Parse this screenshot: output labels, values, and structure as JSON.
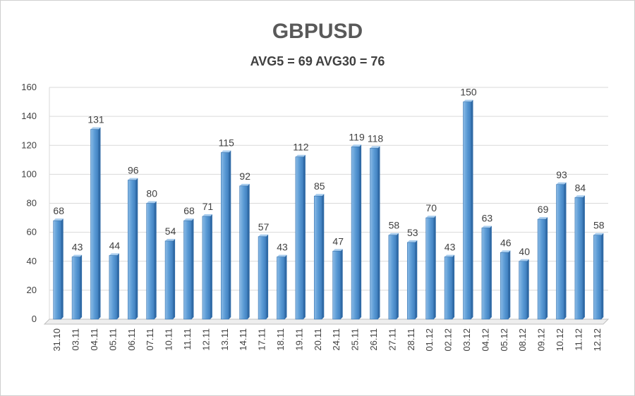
{
  "chart_data": {
    "type": "bar",
    "title": "GBPUSD",
    "subtitle": "AVG5 = 69 AVG30 = 76",
    "xlabel": "",
    "ylabel": "",
    "ylim": [
      0,
      160
    ],
    "yticks": [
      0,
      20,
      40,
      60,
      80,
      100,
      120,
      140,
      160
    ],
    "grid": true,
    "legend": "none",
    "bar_color": "#5b9bd5",
    "categories": [
      "31.10",
      "03.11",
      "04.11",
      "05.11",
      "06.11",
      "07.11",
      "10.11",
      "11.11",
      "12.11",
      "13.11",
      "14.11",
      "17.11",
      "18.11",
      "19.11",
      "20.11",
      "24.11",
      "25.11",
      "26.11",
      "27.11",
      "28.11",
      "01.12",
      "02.12",
      "03.12",
      "04.12",
      "05.12",
      "08.12",
      "09.12",
      "10.12",
      "11.12",
      "12.12"
    ],
    "values": [
      68,
      43,
      131,
      44,
      96,
      80,
      54,
      68,
      71,
      115,
      92,
      57,
      43,
      112,
      85,
      47,
      119,
      118,
      58,
      53,
      70,
      43,
      150,
      63,
      46,
      40,
      69,
      93,
      84,
      58
    ]
  }
}
